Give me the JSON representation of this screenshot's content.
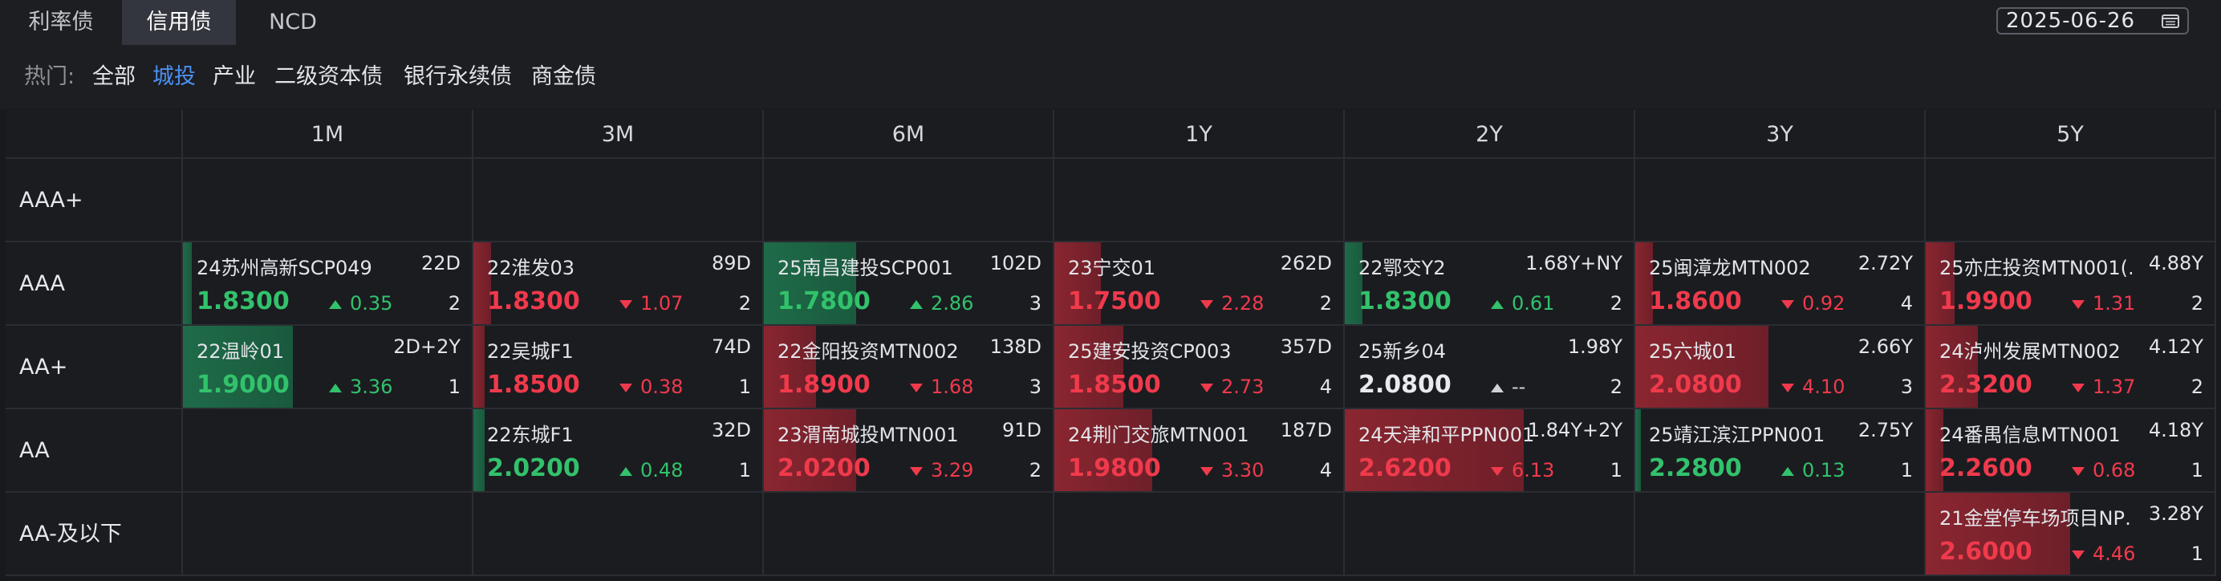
{
  "tabs": [
    {
      "label": "利率债",
      "active": false
    },
    {
      "label": "信用债",
      "active": true
    },
    {
      "label": "NCD",
      "active": false
    }
  ],
  "date": "2025-06-26",
  "filter": {
    "label": "热门:",
    "chips": [
      {
        "label": "全部",
        "active": false
      },
      {
        "label": "城投",
        "active": true
      },
      {
        "label": "产业",
        "active": false
      },
      {
        "label": "二级资本债",
        "active": false
      },
      {
        "label": "银行永续债",
        "active": false
      },
      {
        "label": "商金债",
        "active": false
      }
    ]
  },
  "grid": {
    "columns": [
      "1M",
      "3M",
      "6M",
      "1Y",
      "2Y",
      "3Y",
      "5Y"
    ],
    "rows": [
      {
        "label": "AAA+",
        "cells": [
          null,
          null,
          null,
          null,
          null,
          null,
          null
        ]
      },
      {
        "label": "AAA",
        "cells": [
          {
            "name": "24苏州高新SCP049",
            "term": "22D",
            "rate": "1.8300",
            "change": "0.35",
            "count": "2",
            "dir": "up",
            "bar": 0.03
          },
          {
            "name": "22淮发03",
            "term": "89D",
            "rate": "1.8300",
            "change": "1.07",
            "count": "2",
            "dir": "down",
            "bar": 0.06
          },
          {
            "name": "25南昌建投SCP001",
            "term": "102D",
            "rate": "1.7800",
            "change": "2.86",
            "count": "3",
            "dir": "up",
            "bar": 0.32
          },
          {
            "name": "23宁交01",
            "term": "262D",
            "rate": "1.7500",
            "change": "2.28",
            "count": "2",
            "dir": "down",
            "bar": 0.16
          },
          {
            "name": "22鄂交Y2",
            "term": "1.68Y+NY",
            "rate": "1.8300",
            "change": "0.61",
            "count": "2",
            "dir": "up",
            "bar": 0.06
          },
          {
            "name": "25闽漳龙MTN002",
            "term": "2.72Y",
            "rate": "1.8600",
            "change": "0.92",
            "count": "4",
            "dir": "down",
            "bar": 0.06
          },
          {
            "name": "25亦庄投资MTN001(…",
            "term": "4.88Y",
            "rate": "1.9900",
            "change": "1.31",
            "count": "2",
            "dir": "down",
            "bar": 0.1
          }
        ]
      },
      {
        "label": "AA+",
        "cells": [
          {
            "name": "22温岭01",
            "term": "2D+2Y",
            "rate": "1.9000",
            "change": "3.36",
            "count": "1",
            "dir": "up",
            "bar": 0.38
          },
          {
            "name": "22吴城F1",
            "term": "74D",
            "rate": "1.8500",
            "change": "0.38",
            "count": "1",
            "dir": "down",
            "bar": 0.04
          },
          {
            "name": "22金阳投资MTN002",
            "term": "138D",
            "rate": "1.8900",
            "change": "1.68",
            "count": "3",
            "dir": "down",
            "bar": 0.18
          },
          {
            "name": "25建安投资CP003",
            "term": "357D",
            "rate": "1.8500",
            "change": "2.73",
            "count": "4",
            "dir": "down",
            "bar": 0.24
          },
          {
            "name": "25新乡04",
            "term": "1.98Y",
            "rate": "2.0800",
            "change": "--",
            "count": "2",
            "dir": "flat",
            "bar": 0
          },
          {
            "name": "25六城01",
            "term": "2.66Y",
            "rate": "2.0800",
            "change": "4.10",
            "count": "3",
            "dir": "down",
            "bar": 0.46
          },
          {
            "name": "24泸州发展MTN002",
            "term": "4.12Y",
            "rate": "2.3200",
            "change": "1.37",
            "count": "2",
            "dir": "down",
            "bar": 0.18
          }
        ]
      },
      {
        "label": "AA",
        "cells": [
          null,
          {
            "name": "22东城F1",
            "term": "32D",
            "rate": "2.0200",
            "change": "0.48",
            "count": "1",
            "dir": "up",
            "bar": 0.04
          },
          {
            "name": "23渭南城投MTN001",
            "term": "91D",
            "rate": "2.0200",
            "change": "3.29",
            "count": "2",
            "dir": "down",
            "bar": 0.32
          },
          {
            "name": "24荆门交旅MTN001",
            "term": "187D",
            "rate": "1.9800",
            "change": "3.30",
            "count": "4",
            "dir": "down",
            "bar": 0.34
          },
          {
            "name": "24天津和平PPN001",
            "term": "1.84Y+2Y",
            "rate": "2.6200",
            "change": "6.13",
            "count": "1",
            "dir": "down",
            "bar": 0.62
          },
          {
            "name": "25靖江滨江PPN001",
            "term": "2.75Y",
            "rate": "2.2800",
            "change": "0.13",
            "count": "1",
            "dir": "up",
            "bar": 0.02
          },
          {
            "name": "24番禺信息MTN001",
            "term": "4.18Y",
            "rate": "2.2600",
            "change": "0.68",
            "count": "1",
            "dir": "down",
            "bar": 0.06
          }
        ]
      },
      {
        "label": "AA-及以下",
        "cells": [
          null,
          null,
          null,
          null,
          null,
          null,
          {
            "name": "21金堂停车场项目NP…",
            "term": "3.28Y",
            "rate": "2.6000",
            "change": "4.46",
            "count": "1",
            "dir": "down",
            "bar": 0.5
          }
        ]
      }
    ]
  }
}
